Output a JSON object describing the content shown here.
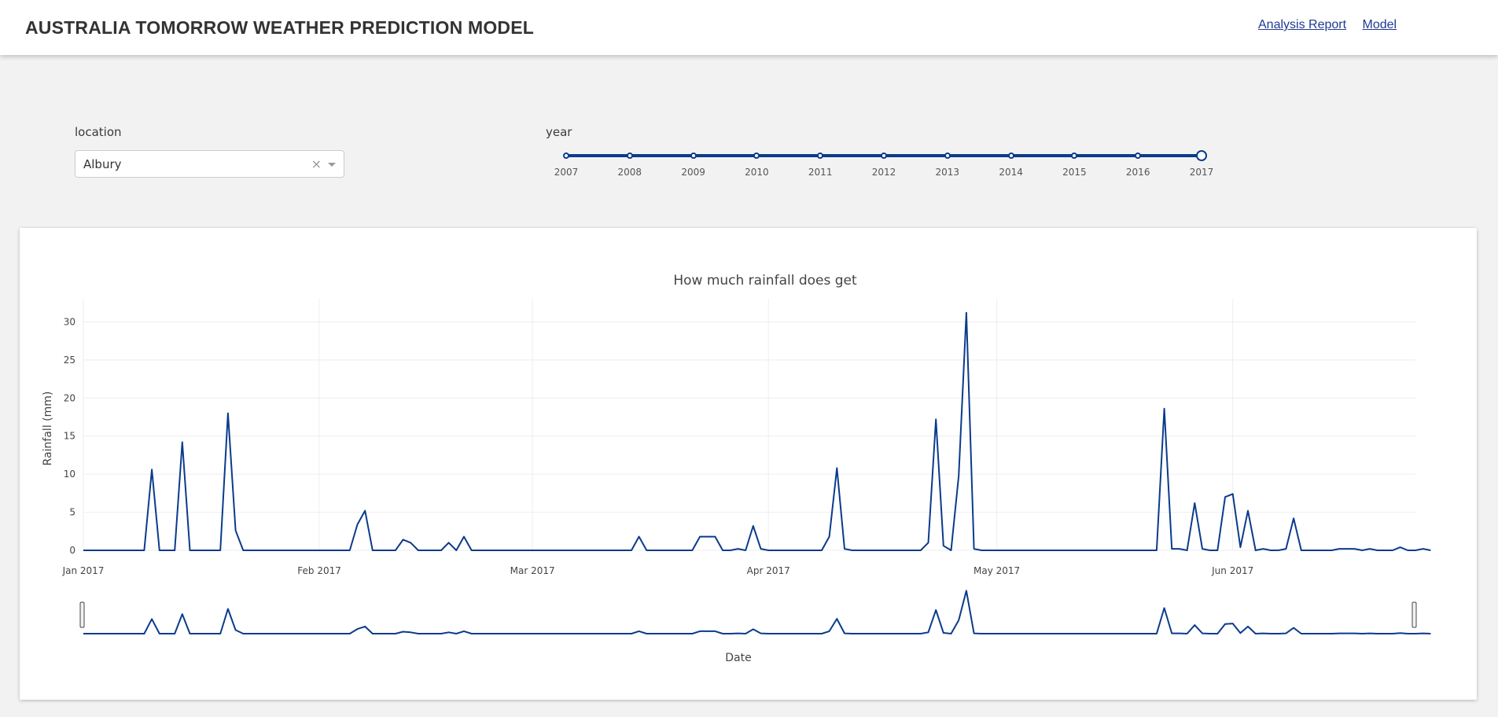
{
  "header": {
    "title": "AUSTRALIA TOMORROW WEATHER PREDICTION MODEL",
    "nav": [
      {
        "label": "Analysis Report"
      },
      {
        "label": "Model"
      }
    ]
  },
  "controls": {
    "location": {
      "label": "location",
      "value": "Albury",
      "clear_icon": "×"
    },
    "year": {
      "label": "year",
      "marks": [
        "2007",
        "2008",
        "2009",
        "2010",
        "2011",
        "2012",
        "2013",
        "2014",
        "2015",
        "2016",
        "2017"
      ],
      "selected": "2017"
    }
  },
  "colors": {
    "line": "#0b3b8c",
    "accent": "#1f3a93",
    "background": "#f2f2f2"
  },
  "chart_data": {
    "type": "line",
    "title": "How much rainfall does get",
    "xlabel": "Date",
    "ylabel": "Rainfall (mm)",
    "ylim": [
      0,
      32
    ],
    "yticks": [
      0,
      5,
      10,
      15,
      20,
      25,
      30
    ],
    "xlim": [
      "2017-01-01",
      "2017-06-25"
    ],
    "xticks": [
      {
        "date": "2017-01-01",
        "label": "Jan 2017"
      },
      {
        "date": "2017-02-01",
        "label": "Feb 2017"
      },
      {
        "date": "2017-03-01",
        "label": "Mar 2017"
      },
      {
        "date": "2017-04-01",
        "label": "Apr 2017"
      },
      {
        "date": "2017-05-01",
        "label": "May 2017"
      },
      {
        "date": "2017-06-01",
        "label": "Jun 2017"
      }
    ],
    "grid": true,
    "rangeslider": true,
    "series": [
      {
        "name": "",
        "points": [
          [
            "2017-01-01",
            0
          ],
          [
            "2017-01-09",
            0
          ],
          [
            "2017-01-10",
            10.6
          ],
          [
            "2017-01-11",
            0
          ],
          [
            "2017-01-13",
            0
          ],
          [
            "2017-01-14",
            14.2
          ],
          [
            "2017-01-15",
            0
          ],
          [
            "2017-01-19",
            0
          ],
          [
            "2017-01-20",
            18
          ],
          [
            "2017-01-21",
            2.6
          ],
          [
            "2017-01-22",
            0
          ],
          [
            "2017-02-05",
            0
          ],
          [
            "2017-02-06",
            3.4
          ],
          [
            "2017-02-07",
            5.2
          ],
          [
            "2017-02-08",
            0
          ],
          [
            "2017-02-11",
            0
          ],
          [
            "2017-02-12",
            1.4
          ],
          [
            "2017-02-13",
            1
          ],
          [
            "2017-02-14",
            0
          ],
          [
            "2017-02-17",
            0
          ],
          [
            "2017-02-18",
            1
          ],
          [
            "2017-02-19",
            0
          ],
          [
            "2017-02-20",
            1.8
          ],
          [
            "2017-02-21",
            0
          ],
          [
            "2017-03-14",
            0
          ],
          [
            "2017-03-15",
            1.8
          ],
          [
            "2017-03-16",
            0
          ],
          [
            "2017-03-22",
            0
          ],
          [
            "2017-03-23",
            1.8
          ],
          [
            "2017-03-25",
            1.8
          ],
          [
            "2017-03-26",
            0
          ],
          [
            "2017-03-27",
            0
          ],
          [
            "2017-03-28",
            0.2
          ],
          [
            "2017-03-29",
            0
          ],
          [
            "2017-03-30",
            3.2
          ],
          [
            "2017-03-31",
            0.2
          ],
          [
            "2017-04-01",
            0
          ],
          [
            "2017-04-08",
            0
          ],
          [
            "2017-04-09",
            1.8
          ],
          [
            "2017-04-10",
            10.8
          ],
          [
            "2017-04-11",
            0.2
          ],
          [
            "2017-04-12",
            0
          ],
          [
            "2017-04-21",
            0
          ],
          [
            "2017-04-22",
            1
          ],
          [
            "2017-04-23",
            17.2
          ],
          [
            "2017-04-24",
            0.6
          ],
          [
            "2017-04-25",
            0
          ],
          [
            "2017-04-26",
            9.8
          ],
          [
            "2017-04-27",
            31.2
          ],
          [
            "2017-04-28",
            0.2
          ],
          [
            "2017-04-29",
            0
          ],
          [
            "2017-05-22",
            0
          ],
          [
            "2017-05-23",
            18.6
          ],
          [
            "2017-05-24",
            0.2
          ],
          [
            "2017-05-25",
            0.2
          ],
          [
            "2017-05-26",
            0
          ],
          [
            "2017-05-27",
            6.2
          ],
          [
            "2017-05-28",
            0.2
          ],
          [
            "2017-05-29",
            0
          ],
          [
            "2017-05-30",
            0
          ],
          [
            "2017-05-31",
            7
          ],
          [
            "2017-06-01",
            7.4
          ],
          [
            "2017-06-02",
            0.4
          ],
          [
            "2017-06-03",
            5.2
          ],
          [
            "2017-06-04",
            0
          ],
          [
            "2017-06-05",
            0.2
          ],
          [
            "2017-06-06",
            0
          ],
          [
            "2017-06-07",
            0
          ],
          [
            "2017-06-08",
            0.2
          ],
          [
            "2017-06-09",
            4.2
          ],
          [
            "2017-06-10",
            0
          ],
          [
            "2017-06-14",
            0
          ],
          [
            "2017-06-15",
            0.2
          ],
          [
            "2017-06-16",
            0.2
          ],
          [
            "2017-06-17",
            0.2
          ],
          [
            "2017-06-18",
            0
          ],
          [
            "2017-06-19",
            0.2
          ],
          [
            "2017-06-20",
            0
          ],
          [
            "2017-06-22",
            0
          ],
          [
            "2017-06-23",
            0.4
          ],
          [
            "2017-06-24",
            0
          ],
          [
            "2017-06-25",
            0
          ],
          [
            "2017-06-26",
            0.2
          ],
          [
            "2017-06-27",
            0
          ]
        ]
      }
    ]
  }
}
